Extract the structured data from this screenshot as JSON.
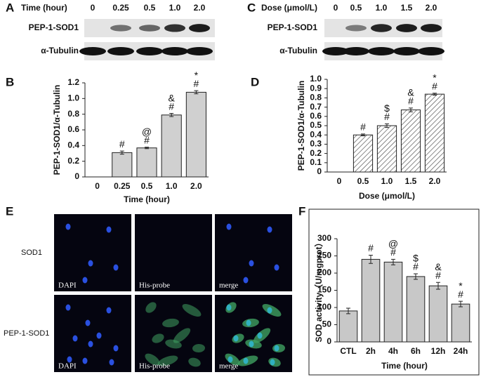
{
  "panel_labels": [
    "A",
    "B",
    "C",
    "D",
    "E",
    "F"
  ],
  "blots": [
    {
      "header": "Time (hour)",
      "lanes": [
        "0",
        "0.25",
        "0.5",
        "1.0",
        "2.0"
      ],
      "rows": [
        "PEP-1-SOD1",
        "α-Tubulin"
      ]
    },
    {
      "header": "Dose (μmol/L)",
      "lanes": [
        "0",
        "0.5",
        "1.0",
        "1.5",
        "2.0"
      ],
      "rows": [
        "PEP-1-SOD1",
        "α-Tubulin"
      ]
    }
  ],
  "images": {
    "rows": [
      "SOD1",
      "PEP-1-SOD1"
    ],
    "captions": [
      [
        "DAPI",
        "His-probe",
        "merge"
      ],
      [
        "DAPI",
        "His-probe",
        "merge"
      ]
    ]
  },
  "chart_data": [
    {
      "type": "bar",
      "y_label": "PEP-1-SOD1/α-Tubulin",
      "x_label": "Time (hour)",
      "categories": [
        "0",
        "0.25",
        "0.5",
        "1.0",
        "2.0"
      ],
      "values": [
        0,
        0.31,
        0.37,
        0.79,
        1.08
      ],
      "errors": [
        0,
        0.02,
        0.01,
        0.02,
        0.02
      ],
      "annotations": [
        [],
        [
          "#"
        ],
        [
          "@",
          "#"
        ],
        [
          "&",
          "#"
        ],
        [
          "*",
          "#"
        ]
      ],
      "color": "#d0d0d0",
      "hatch": false,
      "frame": false,
      "ylim": [
        0,
        1.2
      ],
      "yticks": [
        0,
        0.2,
        0.4,
        0.6,
        0.8,
        {
          "value": 1,
          "label": "1.0"
        },
        1.2
      ]
    },
    {
      "type": "bar",
      "y_label": "PEP-1-SOD1/α-Tubulin",
      "x_label": "Dose (μmol/L)",
      "categories": [
        "0",
        "0.5",
        "1.0",
        "1.5",
        "2.0"
      ],
      "values": [
        0,
        0.4,
        0.5,
        0.67,
        0.84
      ],
      "errors": [
        0,
        0.01,
        0.02,
        0.02,
        0.01
      ],
      "annotations": [
        [],
        [
          "#"
        ],
        [
          "$",
          "#"
        ],
        [
          "&",
          "#"
        ],
        [
          "*",
          "#"
        ]
      ],
      "color": "#d8d8d8",
      "hatch": true,
      "frame": false,
      "ylim": [
        0,
        1
      ],
      "yticks": [
        0,
        0.1,
        0.2,
        0.3,
        0.4,
        0.5,
        0.6,
        0.7,
        0.8,
        0.9,
        {
          "value": 1,
          "label": "1.0"
        }
      ]
    },
    {
      "type": "bar",
      "y_label": "SOD activity（U/mgprot）",
      "x_label": "Time (hour)",
      "categories": [
        "CTL",
        "2h",
        "4h",
        "6h",
        "12h",
        "24h"
      ],
      "values": [
        90,
        240,
        232,
        190,
        163,
        110
      ],
      "errors": [
        8,
        12,
        8,
        8,
        10,
        8
      ],
      "annotations": [
        [],
        [
          "#"
        ],
        [
          "@",
          "#"
        ],
        [
          "$",
          "#"
        ],
        [
          "&",
          "#"
        ],
        [
          "*",
          "#"
        ]
      ],
      "color": "#c8c8c8",
      "hatch": false,
      "frame": true,
      "ylim": [
        0,
        300
      ],
      "yticks": [
        0,
        50,
        100,
        150,
        200,
        250,
        300
      ]
    }
  ]
}
